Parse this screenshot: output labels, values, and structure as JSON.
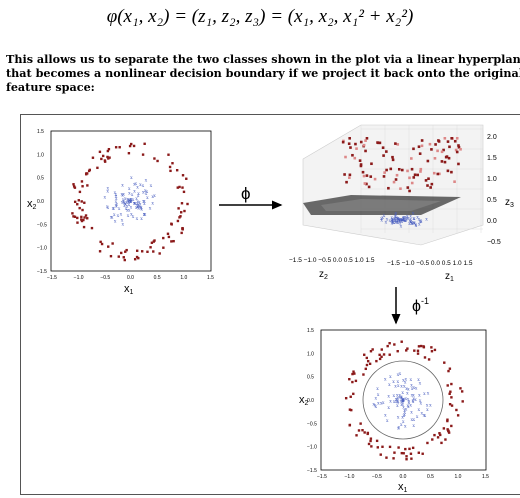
{
  "formula": {
    "lhs": "φ(x₁, x₂)",
    "mid": "(z₁, z₂, z₃)",
    "rhs": "(x₁, x₂, x₁² + x₂²)"
  },
  "paragraph": {
    "line1": "This allows us to separate the two classes shown in the plot via a linear hyperplane",
    "line2": "that becomes a nonlinear decision boundary if we project it back onto the original",
    "line3": "feature space:"
  },
  "figure": {
    "arrow_phi_label": "ϕ",
    "arrow_phi_inv_label": "ϕ",
    "arrow_phi_inv_sup": "-1",
    "colors": {
      "class_a": "#8b1a1a",
      "class_b": "#4a5fc0",
      "plane": "#222222"
    },
    "plot_left": {
      "xlabel": "x1",
      "ylabel": "x2",
      "xticks": [
        "−1.5",
        "−1.0",
        "−0.5",
        "0.0",
        "0.5",
        "1.0",
        "1.5"
      ],
      "yticks": [
        "1.5",
        "1.0",
        "0.5",
        "0.0",
        "−0.5",
        "−1.0",
        "−1.5"
      ]
    },
    "plot_3d": {
      "z1_label": "z1",
      "z2_label": "z2",
      "z3_label": "z3",
      "z3_ticks": [
        "2.0",
        "1.5",
        "1.0",
        "0.5",
        "0.0",
        "−0.5"
      ],
      "z2_ticks": "−1.5 −1.0 −0.5 0.0 0.5 1.0 1.5",
      "z1_ticks": "−1.5 −1.0 −0.5 0.0 0.5 1.0 1.5"
    },
    "plot_bottom": {
      "xlabel": "x1",
      "ylabel": "x2",
      "xticks": [
        "−1.5",
        "−1.0",
        "−0.5",
        "0.0",
        "0.5",
        "1.0",
        "1.5"
      ],
      "yticks": [
        "1.5",
        "1.0",
        "0.5",
        "0.0",
        "−0.5",
        "−1.0",
        "−1.5"
      ]
    }
  }
}
